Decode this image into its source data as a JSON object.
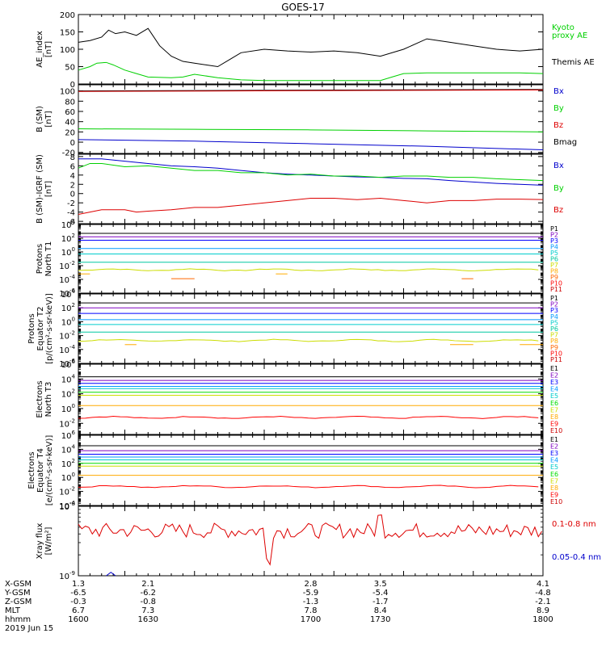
{
  "title": "GOES-17",
  "date_label": "2019 Jun 15",
  "time_axis": {
    "row_labels": [
      "X-GSM",
      "Y-GSM",
      "Z-GSM",
      "MLT",
      "hhmm"
    ],
    "columns": [
      {
        "t": 1600,
        "values": [
          "1.3",
          "-6.5",
          "-0.3",
          "6.7",
          "1600"
        ]
      },
      {
        "t": 1630,
        "values": [
          "2.1",
          "-6.2",
          "-0.8",
          "7.3",
          "1630"
        ]
      },
      {
        "t": 1700,
        "values": [
          "2.8",
          "-5.9",
          "-1.3",
          "7.8",
          "1700"
        ]
      },
      {
        "t": 1730,
        "values": [
          "3.5",
          "-5.4",
          "-1.7",
          "8.4",
          "1730"
        ]
      },
      {
        "t": 1800,
        "values": [
          "4.1",
          "-4.8",
          "-2.1",
          "8.9",
          "1800"
        ]
      }
    ]
  },
  "colors": {
    "black": "#000000",
    "green": "#00d000",
    "blue": "#0000cc",
    "red": "#dd0000",
    "p_series": [
      "#000000",
      "#7f00c0",
      "#0000ff",
      "#0099ff",
      "#00cccc",
      "#00c8a0",
      "#00dd00",
      "#ccdd00",
      "#ffaa00",
      "#ff6600",
      "#ff0000",
      "#cc0000"
    ]
  },
  "chart_data": [
    {
      "type": "line",
      "id": "ae",
      "ylabel": "AE_index [nT]",
      "ylim": [
        0,
        200
      ],
      "yticks": [
        0,
        50,
        100,
        150,
        200
      ],
      "ytick_labels": [
        "0",
        "50",
        "100",
        "150",
        "200"
      ],
      "legend": [
        {
          "text": "Kyoto",
          "color": "#00d000"
        },
        {
          "text": "proxy AE",
          "color": "#00d000"
        },
        {
          "text": "Themis AE",
          "color": "#000000"
        }
      ],
      "series": [
        {
          "color": "#000000",
          "t": [
            1600,
            1605,
            1610,
            1613,
            1616,
            1620,
            1625,
            1630,
            1635,
            1640,
            1645,
            1650,
            1655,
            1660,
            1665,
            1670,
            1680,
            1690,
            1700,
            1710,
            1720,
            1730,
            1740,
            1750,
            1760,
            1770,
            1780,
            1790,
            1800
          ],
          "y": [
            120,
            125,
            135,
            155,
            145,
            150,
            140,
            160,
            110,
            80,
            65,
            60,
            55,
            50,
            70,
            90,
            100,
            95,
            92,
            95,
            90,
            80,
            100,
            130,
            120,
            110,
            100,
            95,
            100
          ]
        },
        {
          "color": "#00d000",
          "t": [
            1600,
            1605,
            1608,
            1612,
            1615,
            1620,
            1625,
            1630,
            1640,
            1645,
            1650,
            1660,
            1670,
            1680,
            1690,
            1700,
            1710,
            1730,
            1735,
            1740,
            1750,
            1760,
            1780,
            1790,
            1800
          ],
          "y": [
            40,
            50,
            60,
            62,
            55,
            40,
            30,
            20,
            18,
            20,
            28,
            18,
            12,
            10,
            10,
            10,
            10,
            10,
            20,
            30,
            32,
            32,
            32,
            32,
            30
          ]
        }
      ]
    },
    {
      "type": "line",
      "id": "bsm",
      "ylabel": "B (SM) [nT]",
      "ylim": [
        -22,
        112
      ],
      "yticks": [
        -20,
        0,
        20,
        40,
        60,
        80,
        100
      ],
      "ytick_labels": [
        "-20",
        "0",
        "20",
        "40",
        "60",
        "80",
        "100"
      ],
      "legend": [
        {
          "text": "Bx",
          "color": "#0000cc"
        },
        {
          "text": "By",
          "color": "#00d000"
        },
        {
          "text": "Bz",
          "color": "#dd0000"
        },
        {
          "text": "Bmag",
          "color": "#000000"
        }
      ],
      "series": [
        {
          "color": "#000000",
          "t": [
            1600,
            1800
          ],
          "y": [
            100,
            103
          ]
        },
        {
          "color": "#dd0000",
          "t": [
            1600,
            1800
          ],
          "y": [
            99,
            102
          ]
        },
        {
          "color": "#00d000",
          "t": [
            1600,
            1650,
            1700,
            1750,
            1800
          ],
          "y": [
            26,
            25,
            24,
            22,
            20
          ]
        },
        {
          "color": "#0000cc",
          "t": [
            1600,
            1650,
            1700,
            1750,
            1800
          ],
          "y": [
            5,
            2,
            -3,
            -8,
            -15
          ]
        }
      ]
    },
    {
      "type": "line",
      "id": "bigrf",
      "ylabel": "B (SM)-IGRF (SM) [nT]",
      "ylim": [
        -6.5,
        8.5
      ],
      "yticks": [
        -6,
        -4,
        -2,
        0,
        2,
        4,
        6,
        8
      ],
      "ytick_labels": [
        "-6",
        "-4",
        "-2",
        "0",
        "2",
        "4",
        "6",
        "8"
      ],
      "legend": [
        {
          "text": "Bx",
          "color": "#0000cc"
        },
        {
          "text": "By",
          "color": "#00d000"
        },
        {
          "text": "Bz",
          "color": "#dd0000"
        }
      ],
      "series": [
        {
          "color": "#0000cc",
          "t": [
            1600,
            1610,
            1620,
            1630,
            1640,
            1650,
            1660,
            1670,
            1680,
            1690,
            1700,
            1710,
            1720,
            1730,
            1740,
            1750,
            1760,
            1770,
            1780,
            1790,
            1800
          ],
          "y": [
            7.5,
            7.5,
            7,
            6.5,
            6,
            5.8,
            5.5,
            5,
            4.5,
            4.2,
            4,
            3.8,
            3.6,
            3.5,
            3.3,
            3.2,
            2.8,
            2.5,
            2.2,
            2,
            1.8
          ]
        },
        {
          "color": "#00d000",
          "t": [
            1600,
            1605,
            1610,
            1620,
            1630,
            1640,
            1650,
            1660,
            1670,
            1680,
            1690,
            1700,
            1710,
            1720,
            1730,
            1740,
            1750,
            1760,
            1770,
            1780,
            1790,
            1800
          ],
          "y": [
            5.5,
            6.5,
            6.5,
            5.8,
            6,
            5.5,
            5,
            5,
            4.5,
            4.5,
            4,
            4.2,
            3.8,
            3.8,
            3.5,
            3.8,
            3.8,
            3.5,
            3.5,
            3.2,
            3,
            2.8
          ]
        },
        {
          "color": "#dd0000",
          "t": [
            1600,
            1605,
            1610,
            1620,
            1625,
            1630,
            1640,
            1650,
            1660,
            1670,
            1680,
            1690,
            1700,
            1710,
            1720,
            1730,
            1740,
            1750,
            1760,
            1770,
            1780,
            1790,
            1800
          ],
          "y": [
            -4.5,
            -4,
            -3.5,
            -3.5,
            -4,
            -3.8,
            -3.5,
            -3,
            -3,
            -2.5,
            -2,
            -1.5,
            -1,
            -1,
            -1.3,
            -1,
            -1.5,
            -2,
            -1.5,
            -1.5,
            -1.2,
            -1.2,
            -1.3
          ]
        }
      ]
    },
    {
      "type": "line",
      "id": "pn",
      "log": true,
      "ylabel": "Protons North T1",
      "ylim_exp": [
        -6,
        4
      ],
      "tick_exps": [
        -6,
        -4,
        -2,
        0,
        2,
        4
      ],
      "legend": [
        {
          "text": "P1",
          "color": "#000000"
        },
        {
          "text": "P2",
          "color": "#7f00c0"
        },
        {
          "text": "P3",
          "color": "#0000ff"
        },
        {
          "text": "P4",
          "color": "#0099ff"
        },
        {
          "text": "P5",
          "color": "#00cccc"
        },
        {
          "text": "P6",
          "color": "#00c8a0"
        },
        {
          "text": "P7",
          "color": "#ccdd00"
        },
        {
          "text": "P8",
          "color": "#ffaa00"
        },
        {
          "text": "P9",
          "color": "#ff6600"
        },
        {
          "text": "P10",
          "color": "#ff0000"
        },
        {
          "text": "P11",
          "color": "#cc0000"
        }
      ],
      "series": [
        {
          "color": "#000000",
          "exp": 2.7
        },
        {
          "color": "#7f00c0",
          "exp": 2.2
        },
        {
          "color": "#0000ff",
          "exp": 1.7
        },
        {
          "color": "#0099ff",
          "exp": 0.5
        },
        {
          "color": "#00cccc",
          "exp": -0.3
        },
        {
          "color": "#00c8a0",
          "exp": -1.5
        },
        {
          "color": "#ccdd00",
          "exp": -2.6,
          "wavy": true
        },
        {
          "color": "#ffaa00",
          "exp": -3.2,
          "segments": [
            [
              1600,
              1605
            ],
            [
              1685,
              1690
            ]
          ]
        },
        {
          "color": "#ff6600",
          "exp": -3.9,
          "segments": [
            [
              1640,
              1650
            ],
            [
              1765,
              1770
            ]
          ]
        }
      ]
    },
    {
      "type": "line",
      "id": "pe",
      "log": true,
      "ylabel": "Protons Equator T2 [p/(cm²-s-sr-keV)]",
      "ylim_exp": [
        -6,
        4
      ],
      "tick_exps": [
        -6,
        -4,
        -2,
        0,
        2,
        4
      ],
      "legend": [
        {
          "text": "P1",
          "color": "#000000"
        },
        {
          "text": "P2",
          "color": "#7f00c0"
        },
        {
          "text": "P3",
          "color": "#0000ff"
        },
        {
          "text": "P4",
          "color": "#0099ff"
        },
        {
          "text": "P5",
          "color": "#00cccc"
        },
        {
          "text": "P6",
          "color": "#00c8a0"
        },
        {
          "text": "P7",
          "color": "#ccdd00"
        },
        {
          "text": "P8",
          "color": "#ffaa00"
        },
        {
          "text": "P9",
          "color": "#ff6600"
        },
        {
          "text": "P10",
          "color": "#ff0000"
        },
        {
          "text": "P11",
          "color": "#cc0000"
        }
      ],
      "series": [
        {
          "color": "#000000",
          "exp": 2.7
        },
        {
          "color": "#7f00c0",
          "exp": 2.0
        },
        {
          "color": "#0000ff",
          "exp": 1.2
        },
        {
          "color": "#0099ff",
          "exp": 0.3
        },
        {
          "color": "#00cccc",
          "exp": -0.4
        },
        {
          "color": "#00c8a0",
          "exp": -1.5
        },
        {
          "color": "#ccdd00",
          "exp": -2.7,
          "wavy": true
        },
        {
          "color": "#ffaa00",
          "exp": -3.3,
          "segments": [
            [
              1620,
              1625
            ],
            [
              1760,
              1770
            ],
            [
              1790,
              1800
            ]
          ]
        }
      ]
    },
    {
      "type": "line",
      "id": "en",
      "log": true,
      "ylabel": "Electrons North T3",
      "ylim_exp": [
        -3.5,
        6
      ],
      "tick_exps": [
        -2,
        0,
        2,
        4,
        6
      ],
      "legend": [
        {
          "text": "E1",
          "color": "#000000"
        },
        {
          "text": "E2",
          "color": "#7f00c0"
        },
        {
          "text": "E3",
          "color": "#0000ff"
        },
        {
          "text": "E4",
          "color": "#0099ff"
        },
        {
          "text": "E5",
          "color": "#00cccc"
        },
        {
          "text": "E6",
          "color": "#00dd00"
        },
        {
          "text": "E7",
          "color": "#ccdd00"
        },
        {
          "text": "E8",
          "color": "#ffaa00"
        },
        {
          "text": "E9",
          "color": "#ff0000"
        },
        {
          "text": "E10",
          "color": "#cc0000"
        }
      ],
      "series": [
        {
          "color": "#000000",
          "exp": 4.3
        },
        {
          "color": "#7f00c0",
          "exp": 3.8
        },
        {
          "color": "#0000ff",
          "exp": 3.4
        },
        {
          "color": "#0099ff",
          "exp": 3.0
        },
        {
          "color": "#00cccc",
          "exp": 2.7
        },
        {
          "color": "#00dd00",
          "exp": 2.2
        },
        {
          "color": "#ccdd00",
          "exp": 1.8
        },
        {
          "color": "#ffaa00",
          "exp": 0.4
        },
        {
          "color": "#ff0000",
          "exp": -1.2,
          "wavy": true
        }
      ]
    },
    {
      "type": "line",
      "id": "ee",
      "log": true,
      "ylabel": "Electrons Equator T4 [e/(cm²-s-sr-keV)]",
      "ylim_exp": [
        -4,
        6
      ],
      "tick_exps": [
        -4,
        -2,
        0,
        2,
        4,
        6
      ],
      "legend": [
        {
          "text": "E1",
          "color": "#000000"
        },
        {
          "text": "E2",
          "color": "#7f00c0"
        },
        {
          "text": "E3",
          "color": "#0000ff"
        },
        {
          "text": "E4",
          "color": "#0099ff"
        },
        {
          "text": "E5",
          "color": "#00cccc"
        },
        {
          "text": "E6",
          "color": "#00dd00"
        },
        {
          "text": "E7",
          "color": "#ccdd00"
        },
        {
          "text": "E8",
          "color": "#ffaa00"
        },
        {
          "text": "E9",
          "color": "#ff0000"
        },
        {
          "text": "E10",
          "color": "#cc0000"
        }
      ],
      "series": [
        {
          "color": "#000000",
          "exp": 4.5
        },
        {
          "color": "#7f00c0",
          "exp": 3.8
        },
        {
          "color": "#0000ff",
          "exp": 3.3
        },
        {
          "color": "#0099ff",
          "exp": 2.9
        },
        {
          "color": "#00cccc",
          "exp": 2.5
        },
        {
          "color": "#00dd00",
          "exp": 2.0
        },
        {
          "color": "#ccdd00",
          "exp": 1.6
        },
        {
          "color": "#ffaa00",
          "exp": 0.3
        },
        {
          "color": "#ff0000",
          "exp": -1.3,
          "wavy": true
        }
      ]
    },
    {
      "type": "line",
      "id": "xray",
      "log": true,
      "ylabel": "Xray flux [W/m²]",
      "ylim_exp": [
        -9,
        -8
      ],
      "tick_exps": [
        -9,
        -8
      ],
      "legend": [
        {
          "text": "0.1-0.8 nm",
          "color": "#dd0000"
        },
        {
          "text": "0.05-0.4 nm",
          "color": "#0000cc"
        }
      ],
      "series": [
        {
          "color": "#dd0000",
          "exp": -8.35,
          "noisy": true
        }
      ],
      "spike": {
        "color": "#0000cc",
        "t": [
          1612,
          1614,
          1616
        ],
        "exp": [
          -9,
          -8.95,
          -9
        ]
      }
    }
  ]
}
